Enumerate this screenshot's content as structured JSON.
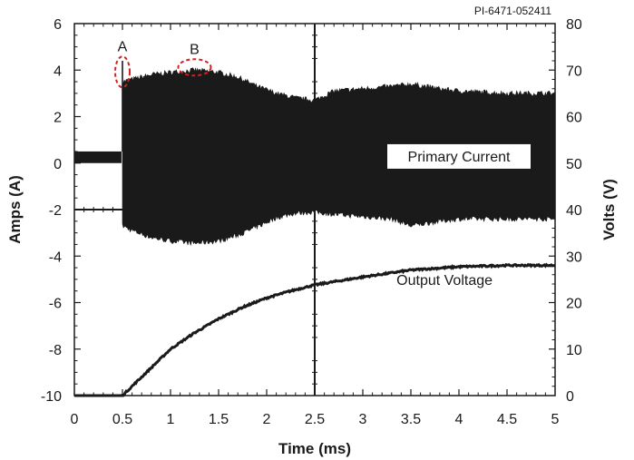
{
  "chart_data": {
    "type": "line",
    "figure_code": "PI-6471-052411",
    "xlabel": "Time (ms)",
    "ylabel_left": "Amps (A)",
    "ylabel_right": "Volts (V)",
    "xlim": [
      0,
      5
    ],
    "ylim_left": [
      -10,
      6
    ],
    "ylim_right": [
      0,
      80
    ],
    "x_ticks": [
      "0",
      "0.5",
      "1",
      "1.5",
      "2",
      "2.5",
      "3",
      "3.5",
      "4",
      "4.5",
      "5"
    ],
    "y_left_ticks": [
      "6",
      "4",
      "2",
      "0",
      "-2",
      "-4",
      "-6",
      "-8",
      "-10"
    ],
    "y_right_ticks": [
      "80",
      "70",
      "60",
      "50",
      "40",
      "30",
      "20",
      "10",
      "0"
    ],
    "grid": "center cross at x=2.5 ms and y=-2 A",
    "series": [
      {
        "name": "Primary Current",
        "axis": "left",
        "style": "envelope",
        "x": [
          0,
          0.49,
          0.5,
          0.6,
          0.8,
          1.0,
          1.25,
          1.5,
          1.7,
          1.9,
          2.1,
          2.3,
          2.5,
          2.7,
          3.0,
          3.3,
          3.5,
          3.8,
          4.0,
          4.5,
          5.0
        ],
        "upper": [
          0.5,
          0.5,
          3.5,
          3.6,
          3.8,
          3.9,
          4.0,
          3.9,
          3.7,
          3.3,
          3.0,
          2.8,
          2.7,
          3.1,
          3.2,
          3.3,
          3.4,
          3.2,
          3.1,
          3.0,
          3.0
        ],
        "lower": [
          0.0,
          0.0,
          -2.7,
          -2.9,
          -3.2,
          -3.35,
          -3.45,
          -3.35,
          -3.1,
          -2.75,
          -2.35,
          -2.15,
          -2.1,
          -2.2,
          -2.3,
          -2.4,
          -2.7,
          -2.5,
          -2.4,
          -2.4,
          -2.4
        ]
      },
      {
        "name": "Output Voltage",
        "axis": "right",
        "style": "line",
        "x": [
          0,
          0.5,
          0.75,
          1.0,
          1.25,
          1.5,
          1.75,
          2.0,
          2.25,
          2.5,
          3.0,
          3.5,
          4.0,
          4.5,
          5.0
        ],
        "values": [
          0,
          0,
          5,
          10,
          13.5,
          16.5,
          19,
          21,
          22.5,
          23.8,
          25.5,
          27,
          27.7,
          28,
          28
        ]
      }
    ],
    "annotations": [
      {
        "label": "A",
        "x": 0.5,
        "y": 4.0,
        "marker": "dashed-red-ellipse",
        "axis": "left"
      },
      {
        "label": "B",
        "x": 1.25,
        "y": 4.0,
        "marker": "dashed-red-ellipse",
        "axis": "left"
      },
      {
        "text": "Primary Current",
        "x": 4.0,
        "y": 0.5,
        "axis": "left"
      },
      {
        "text": "Output Voltage",
        "x": 3.85,
        "y": 26,
        "axis": "right"
      }
    ],
    "colors": {
      "trace": "#1a1a1a",
      "marker": "#d62020",
      "frame": "#1a1a1a",
      "background": "#ffffff"
    }
  }
}
